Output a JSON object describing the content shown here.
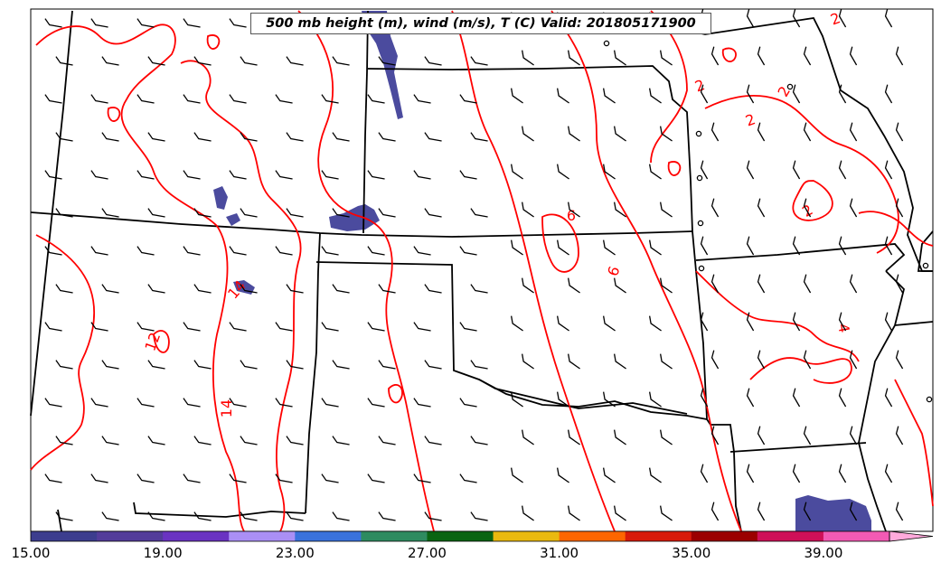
{
  "title": "500 mb height (m), wind (m/s), T (C) Valid: 201805171900",
  "contour_labels": [
    "2",
    "2",
    "2",
    "2",
    "2",
    "6",
    "6",
    "14",
    "12",
    "14",
    "4"
  ],
  "colorbar": {
    "tick_labels": [
      "15.00",
      "19.00",
      "23.00",
      "27.00",
      "31.00",
      "35.00",
      "39.00"
    ],
    "colors": [
      "#3c3d8e",
      "#533c9a",
      "#6a33c2",
      "#aa8ff5",
      "#3a72dc",
      "#2e8b60",
      "#0a6412",
      "#eab90f",
      "#fd6600",
      "#d81b0a",
      "#9b0000",
      "#cf1058",
      "#f35ab4",
      "#ffaadc"
    ]
  },
  "colors": {
    "isotherm": "#ff0000",
    "border": "#000000",
    "shading": "#4a4a9c"
  },
  "labels": [
    "500 mb height (m), wind (m/s), T (C)"
  ]
}
